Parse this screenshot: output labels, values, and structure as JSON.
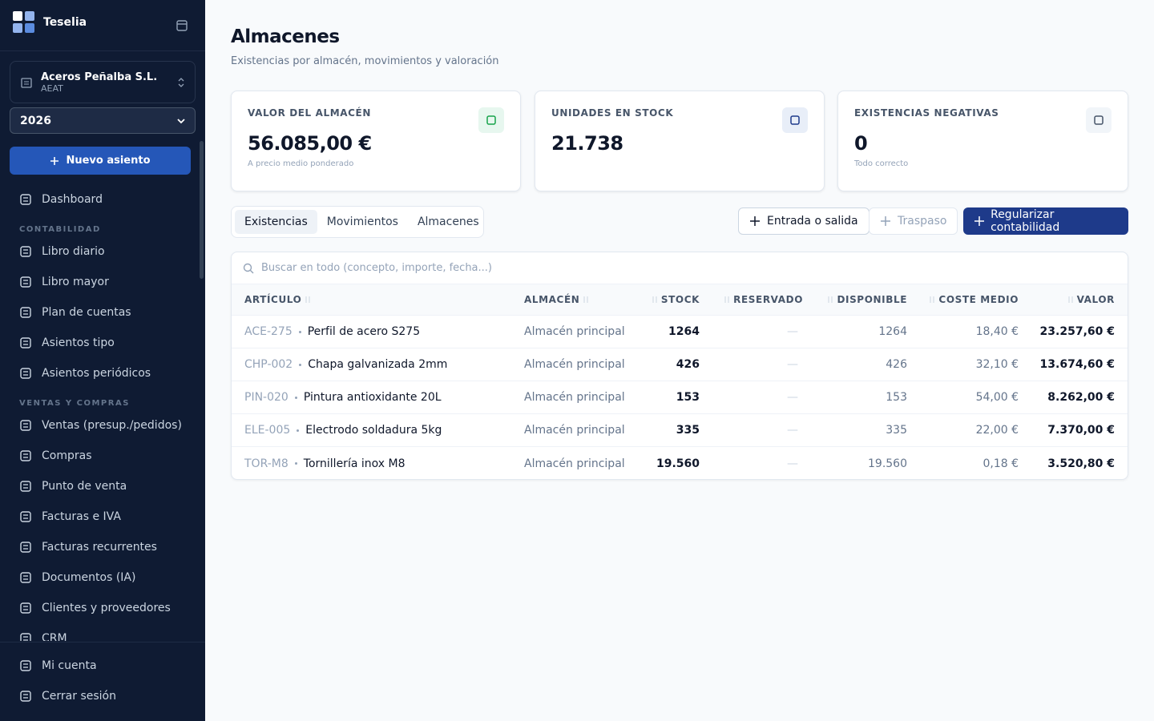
{
  "sidebar": {
    "brand": "Teselia",
    "company": {
      "name": "Aceros Peñalba S.L.",
      "sub": "AEAT"
    },
    "year": "2026",
    "new_button": "Nuevo asiento",
    "top": [
      "Dashboard"
    ],
    "sections": [
      {
        "heading": "CONTABILIDAD",
        "items": [
          "Libro diario",
          "Libro mayor",
          "Plan de cuentas",
          "Asientos tipo",
          "Asientos periódicos"
        ]
      },
      {
        "heading": "VENTAS Y COMPRAS",
        "items": [
          "Ventas (presup./pedidos)",
          "Compras",
          "Punto de venta",
          "Facturas e IVA",
          "Facturas recurrentes",
          "Documentos (IA)",
          "Clientes y proveedores",
          "CRM"
        ]
      }
    ],
    "footer": [
      "Mi cuenta",
      "Cerrar sesión"
    ]
  },
  "header": {
    "title": "Almacenes",
    "subtitle": "Existencias por almacén, movimientos y valoración"
  },
  "cards": [
    {
      "label": "VALOR DEL ALMACÉN",
      "value": "56.085,00 €",
      "note": "A precio medio ponderado"
    },
    {
      "label": "UNIDADES EN STOCK",
      "value": "21.738"
    },
    {
      "label": "EXISTENCIAS NEGATIVAS",
      "value": "0",
      "note": "Todo correcto"
    }
  ],
  "tabs": [
    "Existencias",
    "Movimientos",
    "Almacenes"
  ],
  "actions": [
    "Entrada o salida",
    "Traspaso",
    "Regularizar contabilidad"
  ],
  "search": {
    "placeholder": "Buscar en todo (concepto, importe, fecha...)"
  },
  "table": {
    "columns": [
      "ARTÍCULO",
      "ALMACÉN",
      "STOCK",
      "RESERVADO",
      "DISPONIBLE",
      "COSTE MEDIO",
      "VALOR"
    ],
    "rows": [
      [
        "ACE-275",
        "Perfil de acero S275",
        "Almacén principal",
        "1264",
        "—",
        "1264",
        "18,40 €",
        "23.257,60 €"
      ],
      [
        "CHP-002",
        "Chapa galvanizada 2mm",
        "Almacén principal",
        "426",
        "—",
        "426",
        "32,10 €",
        "13.674,60 €"
      ],
      [
        "PIN-020",
        "Pintura antioxidante 20L",
        "Almacén principal",
        "153",
        "—",
        "153",
        "54,00 €",
        "8.262,00 €"
      ],
      [
        "ELE-005",
        "Electrodo soldadura 5kg",
        "Almacén principal",
        "335",
        "—",
        "335",
        "22,00 €",
        "7.370,00 €"
      ],
      [
        "TOR-M8",
        "Tornillería inox M8",
        "Almacén principal",
        "19.560",
        "—",
        "19.560",
        "0,18 €",
        "3.520,80 €"
      ]
    ]
  }
}
